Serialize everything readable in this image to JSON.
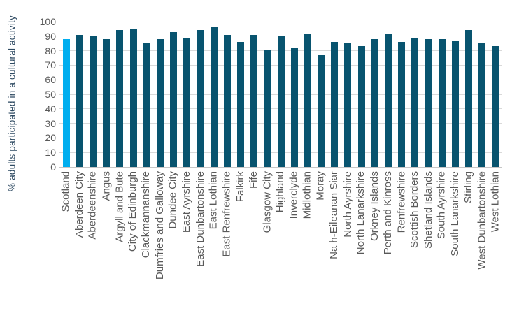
{
  "chart_data": {
    "type": "bar",
    "title": "",
    "xlabel": "",
    "ylabel": "% adults participated in a cultural activity",
    "ylim": [
      0,
      100
    ],
    "y_ticks": [
      0,
      10,
      20,
      30,
      40,
      50,
      60,
      70,
      80,
      90,
      100
    ],
    "grid": "horizontal",
    "legend_position": "none",
    "highlight_category": "Scotland",
    "categories": [
      "Scotland",
      "Aberdeen City",
      "Aberdeenshire",
      "Angus",
      "Argyll and Bute",
      "City of Edinburgh",
      "Clackmannanshire",
      "Dumfries and Galloway",
      "Dundee City",
      "East Ayrshire",
      "East Dunbartonshire",
      "East Lothian",
      "East Renfrewshire",
      "Falkirk",
      "Fife",
      "Glasgow City",
      "Highland",
      "Inverclyde",
      "Midlothian",
      "Moray",
      "Na h-Eileanan Siar",
      "North Ayrshire",
      "North Lanarkshire",
      "Orkney Islands",
      "Perth and Kinross",
      "Renfrewshire",
      "Scottish Borders",
      "Shetland Islands",
      "South Ayrshire",
      "South Lanarkshire",
      "Stirling",
      "West Dunbartonshire",
      "West Lothian"
    ],
    "values": [
      88,
      91,
      90,
      88,
      94,
      95,
      85,
      88,
      93,
      89,
      94,
      96,
      91,
      86,
      91,
      81,
      90,
      82,
      92,
      77,
      86,
      85,
      83,
      88,
      92,
      86,
      89,
      88,
      88,
      87,
      94,
      85,
      83
    ]
  },
  "colors": {
    "highlight_bar": "#00AEEF",
    "bar": "#08546F",
    "gridline": "#D9D9D9",
    "axis_line": "#C6C6C6",
    "tick_text": "#595959",
    "axis_title_text": "#2E4A62"
  }
}
